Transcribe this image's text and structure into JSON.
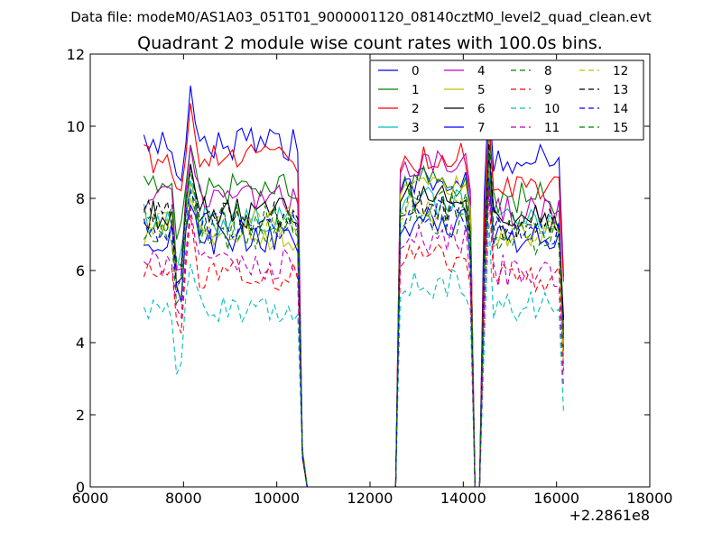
{
  "chart_data": {
    "type": "line",
    "suptitle": "Data file: modeM0/AS1A03_051T01_9000001120_08140cztM0_level2_quad_clean.evt",
    "title": "Quadrant 2 module wise count rates with 100.0s bins.",
    "xlabel": "",
    "ylabel": "",
    "x_offset_label": "+2.2861e8",
    "xlim": [
      6000,
      18000
    ],
    "ylim": [
      0,
      12
    ],
    "xticks": [
      6000,
      8000,
      10000,
      12000,
      14000,
      16000,
      18000
    ],
    "xtick_labels": [
      "6000",
      "8000",
      "10000",
      "12000",
      "14000",
      "16000",
      "18000"
    ],
    "yticks": [
      0,
      2,
      4,
      6,
      8,
      10,
      12
    ],
    "ytick_labels": [
      "0",
      "2",
      "4",
      "6",
      "8",
      "10",
      "12"
    ],
    "grid": false,
    "legend": {
      "location": "upper right",
      "columns": 4
    },
    "time_grid": {
      "start": 7150,
      "step": 100,
      "count": 91
    },
    "segments": [
      {
        "name": "block1",
        "from": 7150,
        "to": 10450
      },
      {
        "name": "block2",
        "from": 12650,
        "to": 14150
      },
      {
        "name": "block3",
        "from": 14450,
        "to": 16150
      }
    ],
    "dropout_points": {
      "zero_start": 10650,
      "zero_end": 12550,
      "gap_zero": [
        14250,
        14350
      ]
    },
    "series": [
      {
        "name": "0",
        "color": "#0000ff",
        "style": "solid",
        "levels": [
          9.5,
          8.4,
          9.1
        ]
      },
      {
        "name": "1",
        "color": "#008000",
        "style": "solid",
        "levels": [
          8.3,
          8.5,
          8.0
        ]
      },
      {
        "name": "2",
        "color": "#ff0000",
        "style": "solid",
        "levels": [
          9.1,
          9.1,
          8.4
        ]
      },
      {
        "name": "3",
        "color": "#00bfbf",
        "style": "solid",
        "levels": [
          7.4,
          7.9,
          7.4
        ]
      },
      {
        "name": "4",
        "color": "#bf00bf",
        "style": "solid",
        "levels": [
          8.0,
          9.0,
          7.6
        ]
      },
      {
        "name": "5",
        "color": "#bfbf00",
        "style": "solid",
        "levels": [
          7.0,
          8.4,
          7.0
        ]
      },
      {
        "name": "6",
        "color": "#000000",
        "style": "solid",
        "levels": [
          7.6,
          8.2,
          7.5
        ]
      },
      {
        "name": "7",
        "color": "#0000ff",
        "style": "solid",
        "levels": [
          6.9,
          7.3,
          6.9
        ]
      },
      {
        "name": "8",
        "color": "#008000",
        "style": "dashed",
        "levels": [
          7.0,
          7.4,
          6.9
        ]
      },
      {
        "name": "9",
        "color": "#ff0000",
        "style": "dashed",
        "levels": [
          5.9,
          6.4,
          5.8
        ]
      },
      {
        "name": "10",
        "color": "#00bfbf",
        "style": "dashed",
        "levels": [
          5.0,
          5.6,
          5.0
        ]
      },
      {
        "name": "11",
        "color": "#bf00bf",
        "style": "dashed",
        "levels": [
          6.2,
          6.9,
          6.0
        ]
      },
      {
        "name": "12",
        "color": "#bfbf00",
        "style": "dashed",
        "levels": [
          7.3,
          7.7,
          7.0
        ]
      },
      {
        "name": "13",
        "color": "#000000",
        "style": "dashed",
        "levels": [
          7.5,
          7.8,
          7.3
        ]
      },
      {
        "name": "14",
        "color": "#0000ff",
        "style": "dashed",
        "levels": [
          7.2,
          7.6,
          7.1
        ]
      },
      {
        "name": "15",
        "color": "#008000",
        "style": "dashed",
        "levels": [
          7.4,
          7.9,
          7.2
        ]
      }
    ]
  }
}
